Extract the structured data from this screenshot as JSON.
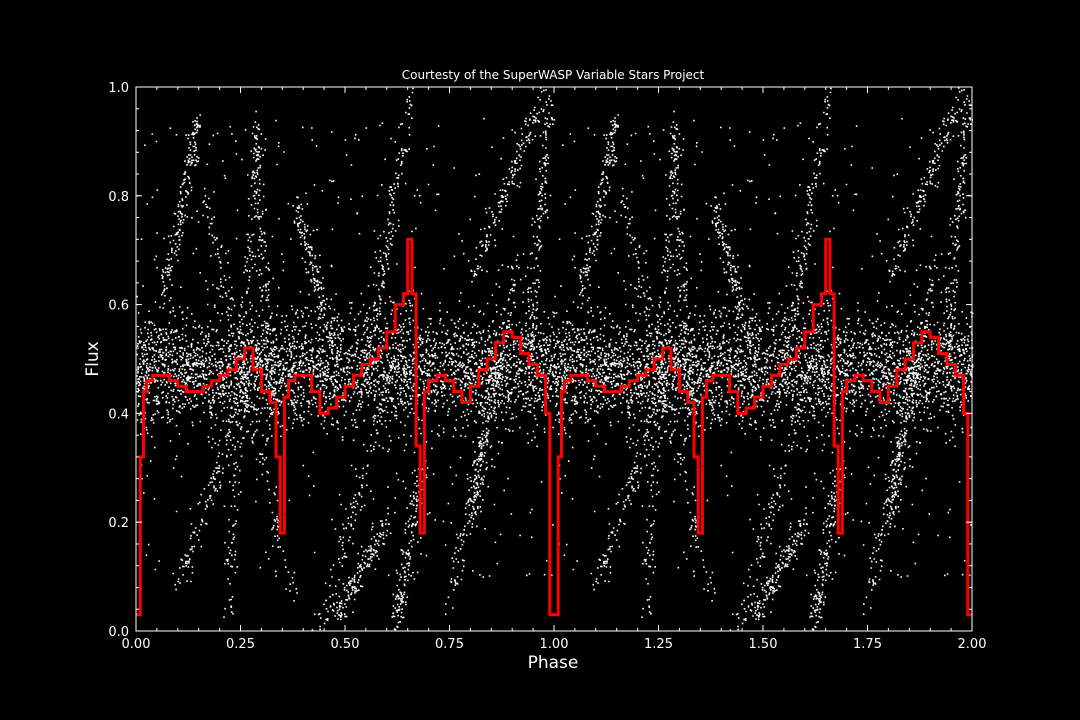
{
  "chart_data": {
    "type": "scatter",
    "title": "Courtesty of the SuperWASP Variable Stars Project",
    "xlabel": "Phase",
    "ylabel": "Flux",
    "xlim": [
      0.0,
      2.0
    ],
    "ylim": [
      0.0,
      1.0
    ],
    "xticks": [
      "0.00",
      "0.25",
      "0.50",
      "0.75",
      "1.00",
      "1.25",
      "1.50",
      "1.75",
      "2.00"
    ],
    "yticks": [
      "0.0",
      "0.2",
      "0.4",
      "0.6",
      "0.8",
      "1.0"
    ],
    "grid": false,
    "legend": "none",
    "colors": {
      "background": "#000000",
      "points": "#ffffff",
      "binned_curve": "#ff0000",
      "axes": "#ffffff"
    },
    "series": [
      {
        "kind": "scatter",
        "description_points": "dense cloud of individual flux measurements centered near flux 0.48 (spread 0.38-0.58) with sparser diagonal streaks reaching 0.0 and 1.0; pattern repeats with period 1.0 in phase",
        "core_center": 0.48,
        "core_spread": 0.05
      },
      {
        "kind": "step",
        "x": [
          0.0,
          0.01,
          0.018,
          0.025,
          0.04,
          0.06,
          0.08,
          0.1,
          0.12,
          0.14,
          0.16,
          0.18,
          0.2,
          0.22,
          0.24,
          0.26,
          0.28,
          0.3,
          0.32,
          0.335,
          0.345,
          0.355,
          0.365,
          0.38,
          0.4,
          0.42,
          0.44,
          0.46,
          0.48,
          0.5,
          0.52,
          0.54,
          0.56,
          0.58,
          0.6,
          0.62,
          0.64,
          0.65,
          0.66,
          0.67,
          0.68,
          0.69,
          0.7,
          0.72,
          0.74,
          0.76,
          0.78,
          0.8,
          0.82,
          0.84,
          0.86,
          0.88,
          0.9,
          0.92,
          0.94,
          0.96,
          0.98,
          0.99
        ],
        "y": [
          0.03,
          0.32,
          0.44,
          0.46,
          0.47,
          0.47,
          0.46,
          0.45,
          0.44,
          0.44,
          0.45,
          0.46,
          0.47,
          0.48,
          0.5,
          0.52,
          0.48,
          0.44,
          0.42,
          0.32,
          0.18,
          0.43,
          0.46,
          0.47,
          0.47,
          0.44,
          0.4,
          0.41,
          0.43,
          0.45,
          0.47,
          0.49,
          0.5,
          0.52,
          0.55,
          0.6,
          0.62,
          0.72,
          0.62,
          0.34,
          0.18,
          0.44,
          0.46,
          0.47,
          0.46,
          0.44,
          0.42,
          0.45,
          0.48,
          0.5,
          0.53,
          0.55,
          0.54,
          0.51,
          0.49,
          0.47,
          0.4,
          0.03
        ]
      }
    ]
  }
}
